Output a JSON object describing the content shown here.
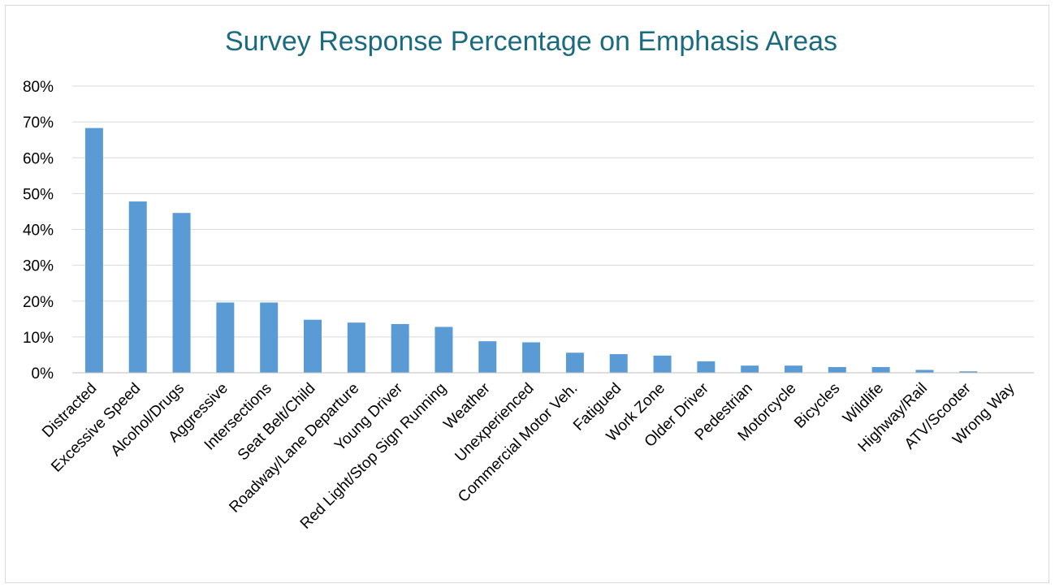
{
  "chart_data": {
    "type": "bar",
    "title": "Survey Response Percentage on Emphasis Areas",
    "xlabel": "",
    "ylabel": "",
    "ylim": [
      0,
      80
    ],
    "yticks": [
      "0%",
      "10%",
      "20%",
      "30%",
      "40%",
      "50%",
      "60%",
      "70%",
      "80%"
    ],
    "grid": true,
    "bar_color": "#5b9bd5",
    "categories": [
      "Distracted",
      "Excessive Speed",
      "Alcohol/Drugs",
      "Aggressive",
      "Intersections",
      "Seat Belt/Child",
      "Roadway/Lane Departure",
      "Young Driver",
      "Red Light/Stop Sign Running",
      "Weather",
      "Unexperienced",
      "Commercial Motor Veh.",
      "Fatigued",
      "Work Zone",
      "Older Driver",
      "Pedestrian",
      "Motorcycle",
      "Bicycles",
      "Wildlife",
      "Highway/Rail",
      "ATV/Scooter",
      "Wrong Way"
    ],
    "values": [
      68.3,
      47.8,
      44.6,
      19.6,
      19.6,
      14.8,
      14.0,
      13.6,
      12.8,
      8.8,
      8.5,
      5.6,
      5.2,
      4.8,
      3.2,
      2.0,
      2.0,
      1.6,
      1.6,
      0.8,
      0.4,
      0.0
    ]
  }
}
